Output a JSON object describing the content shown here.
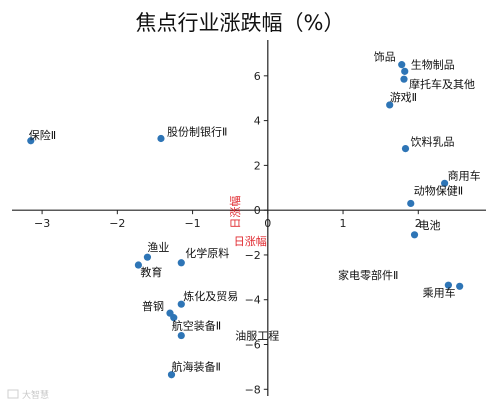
{
  "chart_data": {
    "type": "scatter",
    "title": "焦点行业涨跌幅（%）",
    "xlabel": "日涨幅",
    "ylabel": "日涨幅",
    "xlim": [
      -3.4,
      2.9
    ],
    "ylim": [
      -8.3,
      7.6
    ],
    "xticks": [
      -3,
      -2,
      -1,
      0,
      1,
      2
    ],
    "yticks": [
      -8,
      -6,
      -4,
      -2,
      0,
      2,
      4,
      6
    ],
    "point_color": "#2e75b6",
    "axis_label_color": "#e0282e",
    "grid": false,
    "points": [
      {
        "label": "饰品",
        "x": 1.78,
        "y": 6.5
      },
      {
        "label": "生物制品",
        "x": 1.82,
        "y": 6.2
      },
      {
        "label": "摩托车及其他",
        "x": 1.81,
        "y": 5.85
      },
      {
        "label": "游戏Ⅱ",
        "x": 1.62,
        "y": 4.7
      },
      {
        "label": "饮料乳品",
        "x": 1.83,
        "y": 2.75
      },
      {
        "label": "商用车",
        "x": 2.35,
        "y": 1.2
      },
      {
        "label": "动物保健Ⅱ",
        "x": 1.9,
        "y": 0.3
      },
      {
        "label": "电池",
        "x": 1.95,
        "y": -1.1
      },
      {
        "label": "家电零部件Ⅱ",
        "x": 2.4,
        "y": -3.35
      },
      {
        "label": "乘用车",
        "x": 2.55,
        "y": -3.4
      },
      {
        "label": "保险Ⅱ",
        "x": -3.15,
        "y": 3.1
      },
      {
        "label": "股份制银行Ⅱ",
        "x": -1.42,
        "y": 3.2
      },
      {
        "label": "渔业",
        "x": -1.6,
        "y": -2.1
      },
      {
        "label": "教育",
        "x": -1.72,
        "y": -2.45
      },
      {
        "label": "化学原料",
        "x": -1.15,
        "y": -2.35
      },
      {
        "label": "炼化及贸易",
        "x": -1.15,
        "y": -4.2
      },
      {
        "label": "普钢",
        "x": -1.3,
        "y": -4.6
      },
      {
        "label": "航空装备Ⅱ",
        "x": -1.25,
        "y": -4.8
      },
      {
        "label": "油服工程",
        "x": -1.15,
        "y": -5.6
      },
      {
        "label": "航海装备Ⅱ",
        "x": -1.28,
        "y": -7.35
      }
    ]
  },
  "watermark": "大智慧"
}
